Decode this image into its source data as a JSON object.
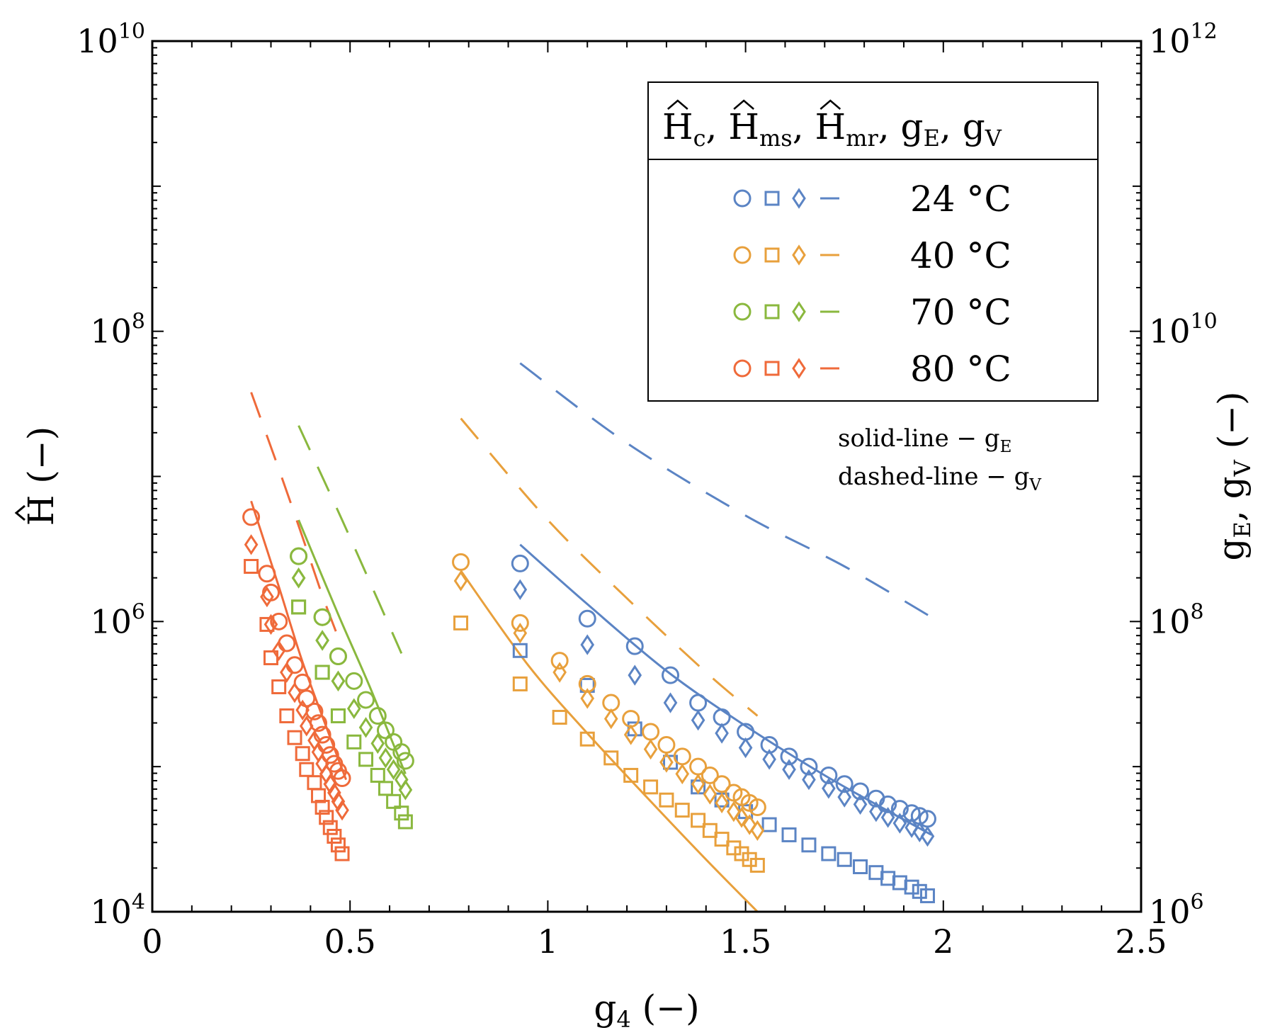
{
  "chart_data": {
    "type": "scatter",
    "xlabel": {
      "main": "g",
      "sub": "4",
      "tail": " (−)"
    },
    "ylabel_left": {
      "main": "H",
      "tail": " (−)"
    },
    "ylabel_right": {
      "g1": "g",
      "sub1": "E",
      "mid": ", g",
      "sub2": "V",
      "tail": " (−)"
    },
    "xlim": [
      0,
      2.5
    ],
    "ylim_left_log10": [
      4,
      10
    ],
    "ylim_right_log10": [
      6,
      12
    ],
    "x_ticks": [
      {
        "v": 0,
        "label": "0"
      },
      {
        "v": 0.5,
        "label": "0.5"
      },
      {
        "v": 1,
        "label": "1"
      },
      {
        "v": 1.5,
        "label": "1.5"
      },
      {
        "v": 2,
        "label": "2"
      },
      {
        "v": 2.5,
        "label": "2.5"
      }
    ],
    "y_left_ticks": [
      {
        "e": 4,
        "base": "10",
        "exp": "4"
      },
      {
        "e": 6,
        "base": "10",
        "exp": "6"
      },
      {
        "e": 8,
        "base": "10",
        "exp": "8"
      },
      {
        "e": 10,
        "base": "10",
        "exp": "10"
      }
    ],
    "y_right_ticks": [
      {
        "e": 6,
        "base": "10",
        "exp": "6"
      },
      {
        "e": 8,
        "base": "10",
        "exp": "8"
      },
      {
        "e": 10,
        "base": "10",
        "exp": "10"
      },
      {
        "e": 12,
        "base": "10",
        "exp": "12"
      }
    ],
    "legend": {
      "header": [
        {
          "main": "H",
          "sub": "c",
          "hat": true,
          "sep": ", "
        },
        {
          "main": "H",
          "sub": "ms",
          "hat": true,
          "sep": ", "
        },
        {
          "main": "H",
          "sub": "mr",
          "hat": true,
          "sep": ", "
        },
        {
          "main": "g",
          "sub": "E",
          "hat": false,
          "sep": ", "
        },
        {
          "main": "g",
          "sub": "V",
          "hat": false,
          "sep": ""
        }
      ],
      "position": "top-right"
    },
    "notes": [
      {
        "text": "solid-line − g",
        "sub": "E"
      },
      {
        "text": "dashed-line − g",
        "sub": "V"
      }
    ],
    "series": [
      {
        "name": "24 °C",
        "color": "#5b84c4",
        "x": [
          0.93,
          1.1,
          1.22,
          1.31,
          1.38,
          1.44,
          1.5,
          1.56,
          1.61,
          1.66,
          1.71,
          1.75,
          1.79,
          1.83,
          1.86,
          1.89,
          1.92,
          1.94,
          1.96
        ],
        "Hc": [
          6.4,
          6.02,
          5.83,
          5.63,
          5.44,
          5.34,
          5.24,
          5.15,
          5.07,
          5.0,
          4.94,
          4.88,
          4.83,
          4.78,
          4.74,
          4.71,
          4.68,
          4.66,
          4.64
        ],
        "Hms": [
          5.8,
          5.56,
          5.26,
          5.03,
          4.86,
          4.77,
          4.69,
          4.6,
          4.53,
          4.46,
          4.4,
          4.36,
          4.31,
          4.27,
          4.23,
          4.2,
          4.17,
          4.14,
          4.11
        ],
        "Hmr": [
          6.22,
          5.84,
          5.63,
          5.44,
          5.32,
          5.23,
          5.13,
          5.05,
          4.98,
          4.91,
          4.85,
          4.79,
          4.74,
          4.69,
          4.65,
          4.61,
          4.58,
          4.55,
          4.52
        ],
        "gE_x": [
          0.93,
          1.1,
          1.3,
          1.5,
          1.7,
          1.85,
          1.97
        ],
        "gE": [
          8.53,
          8.12,
          7.66,
          7.28,
          6.94,
          6.71,
          6.53
        ],
        "gV_x": [
          0.93,
          1.2,
          1.5,
          1.75,
          1.97
        ],
        "gV": [
          9.78,
          9.23,
          8.73,
          8.38,
          8.03
        ]
      },
      {
        "name": "40 °C",
        "color": "#e8a03c",
        "x": [
          0.78,
          0.93,
          1.03,
          1.1,
          1.16,
          1.21,
          1.26,
          1.3,
          1.34,
          1.38,
          1.41,
          1.44,
          1.47,
          1.49,
          1.51,
          1.53
        ],
        "Hc": [
          6.41,
          5.99,
          5.73,
          5.57,
          5.44,
          5.33,
          5.24,
          5.15,
          5.07,
          5.0,
          4.94,
          4.88,
          4.82,
          4.79,
          4.75,
          4.72
        ],
        "Hms": [
          5.99,
          5.57,
          5.34,
          5.19,
          5.06,
          4.94,
          4.86,
          4.77,
          4.7,
          4.63,
          4.56,
          4.5,
          4.44,
          4.4,
          4.36,
          4.32
        ],
        "Hmr": [
          6.28,
          5.92,
          5.65,
          5.47,
          5.33,
          5.22,
          5.12,
          5.03,
          4.95,
          4.88,
          4.81,
          4.75,
          4.69,
          4.65,
          4.6,
          4.56
        ],
        "gE_x": [
          0.78,
          0.95,
          1.1,
          1.25,
          1.4,
          1.53
        ],
        "gE": [
          8.35,
          7.7,
          7.23,
          6.79,
          6.36,
          6.0
        ],
        "gV_x": [
          0.78,
          1.0,
          1.2,
          1.4,
          1.53
        ],
        "gV": [
          9.4,
          8.7,
          8.16,
          7.65,
          7.35
        ]
      },
      {
        "name": "70 °C",
        "color": "#8ab83e",
        "x": [
          0.37,
          0.37,
          0.43,
          0.43,
          0.47,
          0.47,
          0.51,
          0.54,
          0.57,
          0.59,
          0.61,
          0.63,
          0.64
        ],
        "Hc": [
          6.45,
          6.45,
          6.03,
          6.03,
          5.76,
          5.76,
          5.59,
          5.46,
          5.35,
          5.25,
          5.17,
          5.1,
          5.04
        ],
        "Hms": [
          6.1,
          6.1,
          5.65,
          5.65,
          5.35,
          5.35,
          5.17,
          5.05,
          4.94,
          4.85,
          4.76,
          4.68,
          4.62
        ],
        "Hmr": [
          6.3,
          6.3,
          5.87,
          5.87,
          5.59,
          5.59,
          5.4,
          5.27,
          5.16,
          5.06,
          4.98,
          4.91,
          4.84
        ],
        "gE_x": [
          0.37,
          0.47,
          0.55,
          0.64
        ],
        "gE": [
          8.7,
          8.05,
          7.55,
          6.95
        ],
        "gV_x": [
          0.37,
          0.48,
          0.57,
          0.63
        ],
        "gV": [
          9.35,
          8.7,
          8.15,
          7.78
        ]
      },
      {
        "name": "80 °C",
        "color": "#ef6a3a",
        "x": [
          0.25,
          0.29,
          0.3,
          0.32,
          0.34,
          0.36,
          0.38,
          0.39,
          0.41,
          0.42,
          0.43,
          0.44,
          0.45,
          0.46,
          0.47,
          0.48
        ],
        "Hc": [
          6.72,
          6.33,
          6.2,
          6.0,
          5.85,
          5.7,
          5.58,
          5.47,
          5.38,
          5.3,
          5.22,
          5.15,
          5.08,
          5.02,
          4.97,
          4.92
        ],
        "Hms": [
          6.38,
          5.98,
          5.75,
          5.55,
          5.35,
          5.2,
          5.09,
          4.98,
          4.89,
          4.8,
          4.72,
          4.65,
          4.58,
          4.52,
          4.46,
          4.4
        ],
        "Hmr": [
          6.53,
          6.17,
          5.98,
          5.8,
          5.65,
          5.51,
          5.39,
          5.28,
          5.18,
          5.1,
          5.02,
          4.95,
          4.88,
          4.82,
          4.76,
          4.7
        ],
        "gE_x": [
          0.25,
          0.32,
          0.38,
          0.45,
          0.49
        ],
        "gE": [
          8.83,
          8.24,
          7.72,
          7.2,
          6.91
        ],
        "gV_x": [
          0.25,
          0.32,
          0.38,
          0.43,
          0.48
        ],
        "gV": [
          9.58,
          9.05,
          8.58,
          8.18,
          7.82
        ]
      }
    ]
  }
}
